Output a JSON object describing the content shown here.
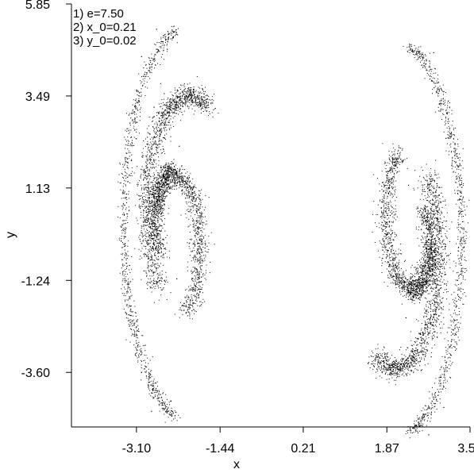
{
  "chart_data": {
    "type": "scatter",
    "title": "",
    "xlabel": "x",
    "ylabel": "y",
    "xlim": [
      -4.39,
      3.52
    ],
    "ylim": [
      -5.0,
      5.85
    ],
    "x_ticks": [
      "-3.10",
      "-1.44",
      "0.21",
      "1.87",
      "3.52"
    ],
    "y_ticks": [
      "5.85",
      "3.49",
      "1.13",
      "-1.24",
      "-3.60"
    ],
    "parameters": [
      "1) e=7.50",
      "2) x_0=0.21",
      "3) y_0=0.02"
    ],
    "grid": false,
    "marker": "dot",
    "color": "#000000",
    "series": [
      {
        "name": "",
        "x": [
          -2.25,
          -2.45,
          -2.75,
          -2.95,
          -2.05,
          -1.9,
          -2.55,
          -2.75,
          -2.8,
          -2.65,
          -2.55,
          -2.3,
          -2.1,
          -1.95,
          -1.85,
          -2.7,
          -3.0,
          -3.25,
          -3.35,
          -3.35,
          -3.2,
          -3.0,
          -2.8,
          2.25,
          2.45,
          2.75,
          2.95,
          2.05,
          1.9,
          2.55,
          2.75,
          2.8,
          2.65,
          2.55,
          2.3,
          2.1,
          1.95,
          1.85,
          2.7,
          3.0,
          3.25,
          3.35,
          3.35,
          3.2,
          3.0,
          2.8
        ],
        "y": [
          2.2,
          1.7,
          0.3,
          -1.0,
          0.9,
          -1.3,
          3.55,
          3.2,
          2.2,
          0.8,
          0.2,
          -1.2,
          -1.8,
          -1.0,
          -0.2,
          5.2,
          4.5,
          3.0,
          1.0,
          -1.0,
          -2.5,
          -3.6,
          -4.6,
          -2.2,
          -1.7,
          -0.3,
          1.0,
          -0.9,
          1.3,
          -3.55,
          -3.2,
          -2.2,
          -0.8,
          -0.2,
          1.2,
          1.8,
          1.0,
          0.2,
          -5.2,
          -4.5,
          -3.0,
          -1.0,
          1.0,
          2.5,
          3.6,
          4.6
        ]
      }
    ]
  }
}
